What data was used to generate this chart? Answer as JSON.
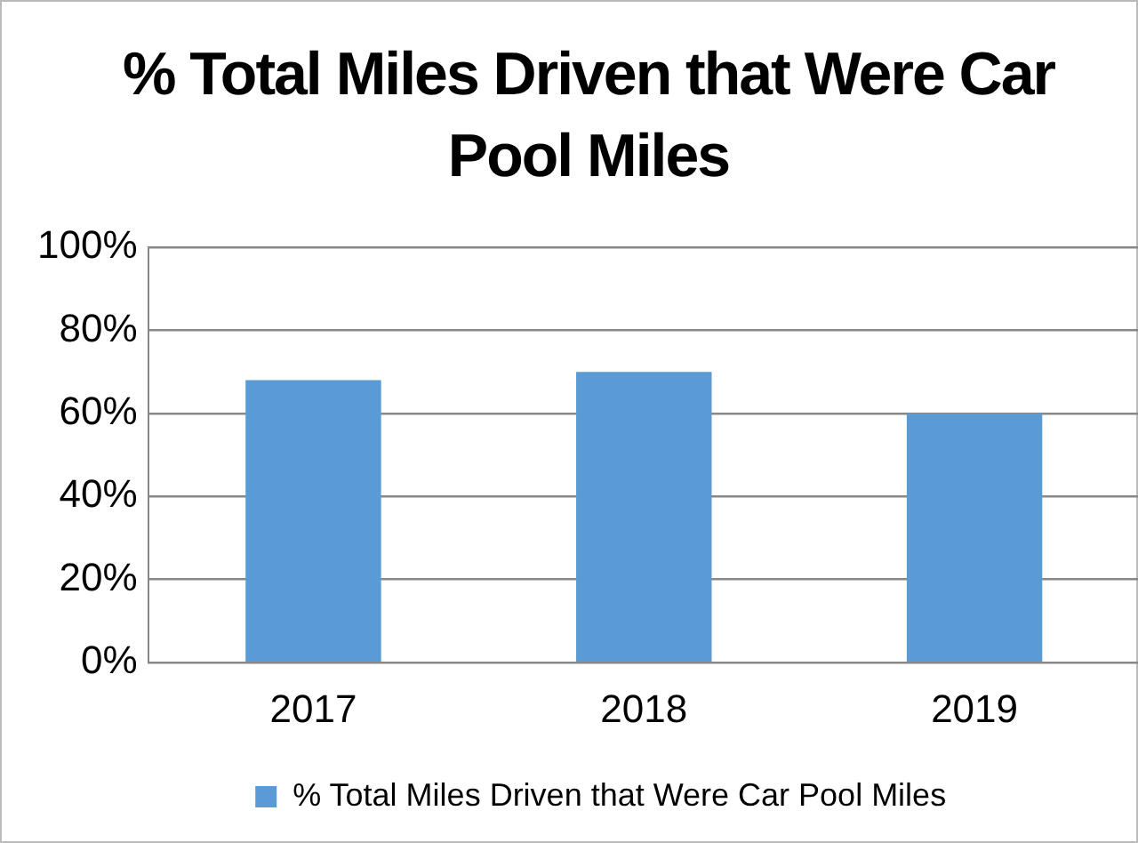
{
  "chart_data": {
    "type": "bar",
    "title": "% Total Miles Driven that Were Car Pool Miles",
    "categories": [
      "2017",
      "2018",
      "2019"
    ],
    "series": [
      {
        "name": "% Total Miles Driven that Were Car Pool Miles",
        "color": "#5b9bd5",
        "values": [
          68,
          70,
          60
        ]
      }
    ],
    "ylim": [
      0,
      100
    ],
    "yticks": [
      {
        "value": 0,
        "label": "0%"
      },
      {
        "value": 20,
        "label": "20%"
      },
      {
        "value": 40,
        "label": "40%"
      },
      {
        "value": 60,
        "label": "60%"
      },
      {
        "value": 80,
        "label": "80%"
      },
      {
        "value": 100,
        "label": "100%"
      }
    ],
    "grid": "y",
    "legend": "bottom"
  }
}
